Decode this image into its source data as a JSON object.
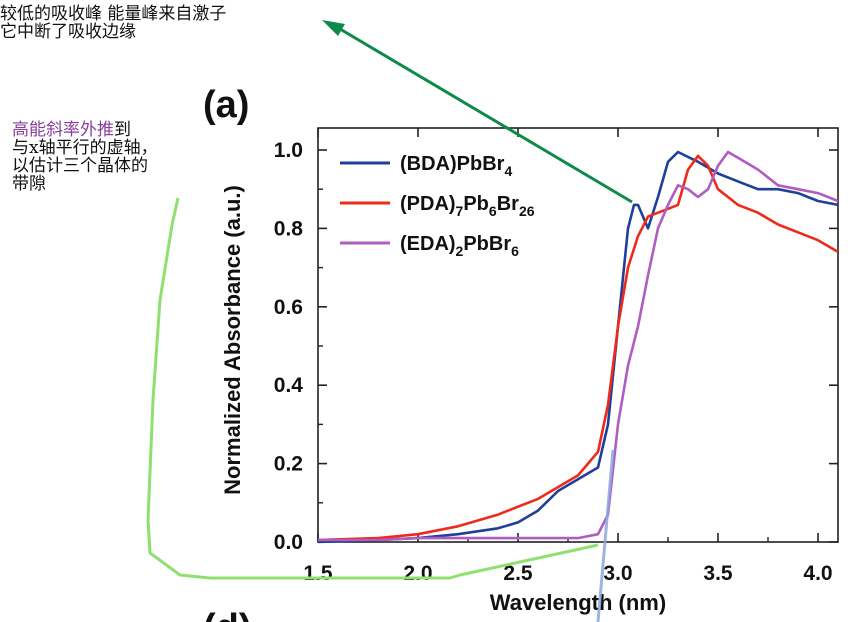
{
  "annotations": {
    "top_note_line1": "较低的吸收峰 能量峰来自激子",
    "top_note_line2": "它中断了吸收边缘",
    "left_note_highlight": "高能斜率外推",
    "left_note_line1_rest": "到",
    "left_note_line2": "与x轴平行的虚轴，",
    "left_note_line3": "以估计三个晶体的",
    "left_note_line4": "带隙"
  },
  "panel_labels": {
    "a": "(a)",
    "d": "(d)"
  },
  "colors": {
    "bda": "#1f3f9a",
    "pda": "#ee2a1b",
    "eda": "#b05cc0",
    "arrow": "#0e8a4a",
    "bracket": "#8fe070",
    "extrap": "#8ea8e0"
  },
  "chart_data": {
    "type": "line",
    "xlabel": "Wavelength (nm)",
    "ylabel": "Normalized Absorbance (a.u.)",
    "xlim": [
      1.5,
      4.1
    ],
    "ylim": [
      0.0,
      1.0
    ],
    "xticks": [
      "1.5",
      "2.0",
      "2.5",
      "3.0",
      "3.5",
      "4.0"
    ],
    "yticks": [
      "0.0",
      "0.2",
      "0.4",
      "0.6",
      "0.8",
      "1.0"
    ],
    "legend_position": "top-left",
    "series": [
      {
        "name": "(BDA)PbBr4",
        "legend_main": "(BDA)PbBr",
        "legend_sub1": "4",
        "x": [
          1.5,
          1.8,
          2.0,
          2.2,
          2.4,
          2.5,
          2.6,
          2.7,
          2.8,
          2.9,
          2.95,
          3.0,
          3.05,
          3.08,
          3.1,
          3.15,
          3.2,
          3.25,
          3.3,
          3.4,
          3.5,
          3.6,
          3.7,
          3.8,
          3.9,
          4.0,
          4.1
        ],
        "y": [
          0.0,
          0.005,
          0.01,
          0.02,
          0.035,
          0.05,
          0.08,
          0.13,
          0.16,
          0.19,
          0.3,
          0.55,
          0.8,
          0.86,
          0.86,
          0.8,
          0.88,
          0.97,
          0.995,
          0.97,
          0.94,
          0.92,
          0.9,
          0.9,
          0.89,
          0.87,
          0.86
        ]
      },
      {
        "name": "(PDA)7Pb6Br26",
        "legend_main": "(PDA)",
        "legend_sub1": "7",
        "legend_mid": "Pb",
        "legend_sub2": "6",
        "legend_mid2": "Br",
        "legend_sub3": "26",
        "x": [
          1.5,
          1.8,
          2.0,
          2.2,
          2.4,
          2.5,
          2.6,
          2.7,
          2.8,
          2.9,
          2.95,
          3.0,
          3.05,
          3.1,
          3.15,
          3.2,
          3.3,
          3.35,
          3.4,
          3.45,
          3.5,
          3.6,
          3.7,
          3.8,
          3.9,
          4.0,
          4.1
        ],
        "y": [
          0.005,
          0.01,
          0.02,
          0.04,
          0.07,
          0.09,
          0.11,
          0.14,
          0.17,
          0.23,
          0.35,
          0.55,
          0.7,
          0.78,
          0.83,
          0.84,
          0.86,
          0.95,
          0.985,
          0.96,
          0.9,
          0.86,
          0.84,
          0.81,
          0.79,
          0.77,
          0.74
        ]
      },
      {
        "name": "(EDA)2PbBr6",
        "legend_main": "(EDA)",
        "legend_sub1": "2",
        "legend_mid": "PbBr",
        "legend_sub2": "6",
        "x": [
          1.5,
          1.8,
          2.0,
          2.2,
          2.4,
          2.6,
          2.8,
          2.9,
          2.95,
          3.0,
          3.05,
          3.1,
          3.15,
          3.2,
          3.25,
          3.3,
          3.35,
          3.4,
          3.45,
          3.5,
          3.55,
          3.6,
          3.7,
          3.8,
          3.9,
          4.0,
          4.1
        ],
        "y": [
          0.005,
          0.005,
          0.01,
          0.01,
          0.01,
          0.01,
          0.01,
          0.02,
          0.07,
          0.3,
          0.45,
          0.55,
          0.68,
          0.8,
          0.86,
          0.91,
          0.9,
          0.88,
          0.9,
          0.96,
          0.995,
          0.98,
          0.95,
          0.91,
          0.9,
          0.89,
          0.87
        ]
      }
    ]
  }
}
